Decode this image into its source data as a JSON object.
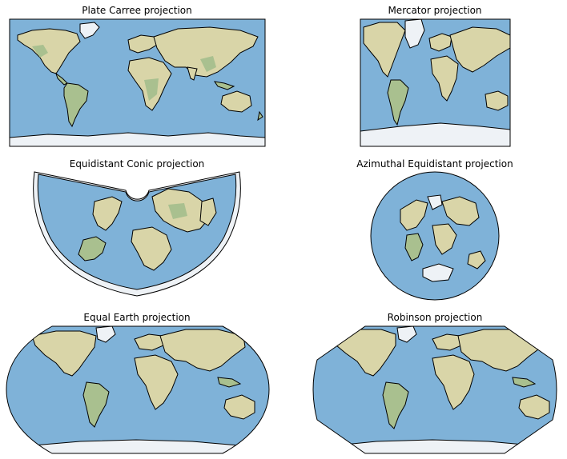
{
  "figure": {
    "panels": [
      {
        "id": "plate-carree",
        "title": "Plate Carree projection"
      },
      {
        "id": "mercator",
        "title": "Mercator projection"
      },
      {
        "id": "equidistant-conic",
        "title": "Equidistant Conic projection"
      },
      {
        "id": "azimuthal-equidistant",
        "title": "Azimuthal Equidistant projection"
      },
      {
        "id": "equal-earth",
        "title": "Equal Earth projection"
      },
      {
        "id": "robinson",
        "title": "Robinson projection"
      }
    ]
  },
  "colors": {
    "ocean": "#7fb2d8",
    "land": "#d9d5a8",
    "land_green": "#a9c08f",
    "ice": "#eef2f6",
    "coastline": "#000000"
  }
}
